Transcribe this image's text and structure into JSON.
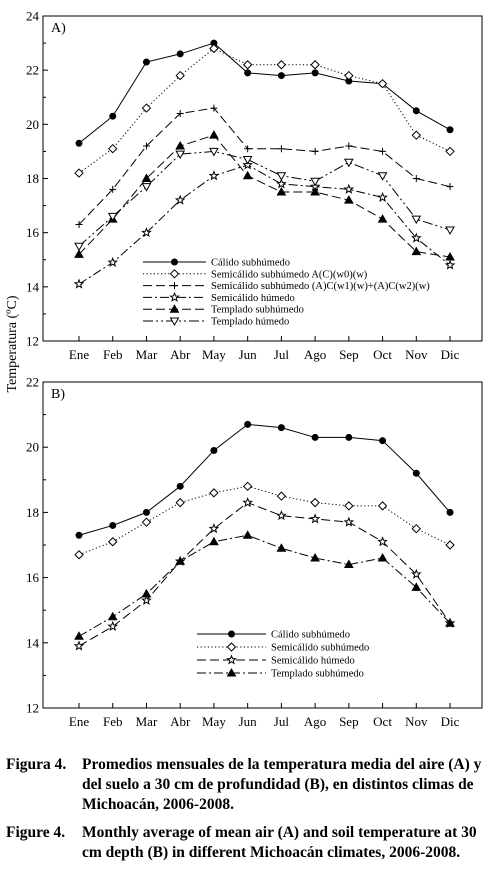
{
  "y_axis_label": "Temperatura (ºC)",
  "chart_data": [
    {
      "type": "line",
      "panel_label": "A)",
      "categories": [
        "Ene",
        "Feb",
        "Mar",
        "Abr",
        "May",
        "Jun",
        "Jul",
        "Ago",
        "Sep",
        "Oct",
        "Nov",
        "Dic"
      ],
      "ylim": [
        12,
        24
      ],
      "yticks": [
        12,
        14,
        16,
        18,
        20,
        22,
        24
      ],
      "grid": false,
      "legend_position": "bottom-center",
      "series": [
        {
          "name": "Cálido subhúmedo",
          "marker": "circle-filled",
          "dash": "solid",
          "values": [
            19.3,
            20.3,
            22.3,
            22.6,
            23.0,
            21.9,
            21.8,
            21.9,
            21.6,
            21.5,
            20.5,
            19.8
          ]
        },
        {
          "name": "Semicálido subhúmedo A(C)(w0)(w)",
          "marker": "diamond-open",
          "dash": "dotted",
          "values": [
            18.2,
            19.1,
            20.6,
            21.8,
            22.8,
            22.2,
            22.2,
            22.2,
            21.8,
            21.5,
            19.6,
            19.0
          ]
        },
        {
          "name": "Semicálido subhúmedo (A)C(w1)(w)+(A)C(w2)(w)",
          "marker": "plus",
          "dash": "long-dash",
          "values": [
            16.3,
            17.6,
            19.2,
            20.4,
            20.6,
            19.1,
            19.1,
            19.0,
            19.2,
            19.0,
            18.0,
            17.7
          ]
        },
        {
          "name": "Semicálido húmedo",
          "marker": "star",
          "dash": "dash-dot",
          "values": [
            14.1,
            14.9,
            16.0,
            17.2,
            18.1,
            18.5,
            17.8,
            17.7,
            17.6,
            17.3,
            15.8,
            14.8
          ]
        },
        {
          "name": "Templado subhúmedo",
          "marker": "triangle-up-filled",
          "dash": "long-dash",
          "values": [
            15.2,
            16.5,
            18.0,
            19.2,
            19.6,
            18.1,
            17.5,
            17.5,
            17.2,
            16.5,
            15.3,
            15.1
          ]
        },
        {
          "name": "Templado húmedo",
          "marker": "triangle-down-open",
          "dash": "dash-dot-dot",
          "values": [
            15.5,
            16.6,
            17.7,
            18.9,
            19.0,
            18.7,
            18.1,
            17.9,
            18.6,
            18.1,
            16.5,
            16.1
          ]
        }
      ]
    },
    {
      "type": "line",
      "panel_label": "B)",
      "categories": [
        "Ene",
        "Feb",
        "Mar",
        "Abr",
        "May",
        "Jun",
        "Jul",
        "Ago",
        "Sep",
        "Oct",
        "Nov",
        "Dic"
      ],
      "ylim": [
        12,
        22
      ],
      "yticks": [
        12,
        14,
        16,
        18,
        20,
        22
      ],
      "grid": false,
      "legend_position": "bottom-center",
      "series": [
        {
          "name": "Cálido subhúmedo",
          "marker": "circle-filled",
          "dash": "solid",
          "values": [
            17.3,
            17.6,
            18.0,
            18.8,
            19.9,
            20.7,
            20.6,
            20.3,
            20.3,
            20.2,
            19.2,
            18.0
          ]
        },
        {
          "name": "Semicálido subhúmedo",
          "marker": "diamond-open",
          "dash": "dotted",
          "values": [
            16.7,
            17.1,
            17.7,
            18.3,
            18.6,
            18.8,
            18.5,
            18.3,
            18.2,
            18.2,
            17.5,
            17.0
          ]
        },
        {
          "name": "Semicálido húmedo",
          "marker": "star",
          "dash": "long-dash",
          "values": [
            13.9,
            14.5,
            15.3,
            16.5,
            17.5,
            18.3,
            17.9,
            17.8,
            17.7,
            17.1,
            16.1,
            14.6
          ]
        },
        {
          "name": "Templado subhúmedo",
          "marker": "triangle-up-filled",
          "dash": "dash-dot",
          "values": [
            14.2,
            14.8,
            15.5,
            16.5,
            17.1,
            17.3,
            16.9,
            16.6,
            16.4,
            16.6,
            15.7,
            14.6
          ]
        }
      ]
    }
  ],
  "caption": {
    "es_label": "Figura 4.",
    "es_text": "Promedios mensuales de la temperatura media del aire (A) y del suelo a 30 cm de profundidad (B), en distintos climas de Michoacán, 2006-2008.",
    "en_label": "Figure 4.",
    "en_text": "Monthly average of mean air (A) and soil temperature at 30 cm depth (B) in different Michoacán climates, 2006-2008."
  }
}
